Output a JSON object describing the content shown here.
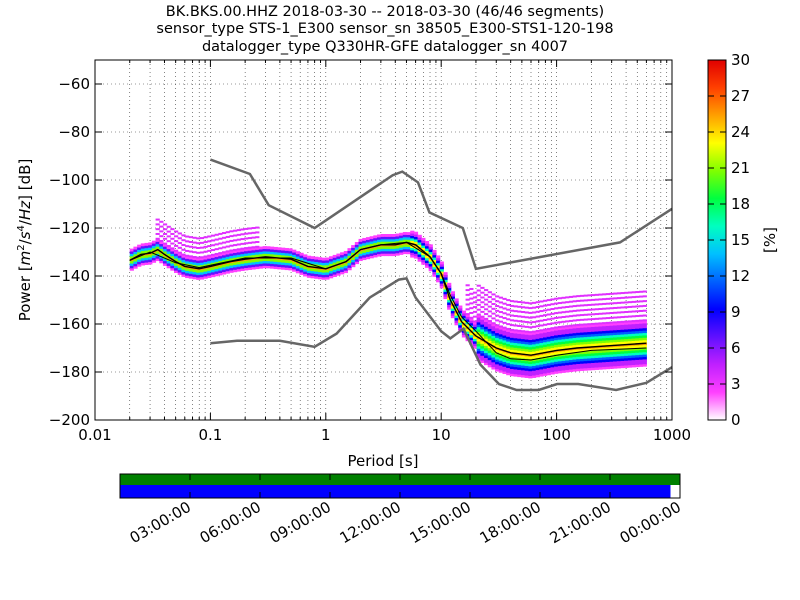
{
  "chart_data": {
    "type": "heatmap",
    "title": {
      "line1": "BK.BKS.00.HHZ   2018-03-30 -- 2018-03-30  (46/46 segments)",
      "line2": "sensor_type STS-1_E300 sensor_sn 38505_E300-STS1-120-198",
      "line3": "datalogger_type Q330HR-GFE datalogger_sn 4007"
    },
    "xlabel": "Period [s]",
    "ylabel": {
      "prefix": "Power [",
      "m": "m",
      "m_exp": "2",
      "slash1": "/",
      "s": "s",
      "s_exp": "4",
      "slash2": "/",
      "hz": "Hz",
      "suffix": "] [dB]"
    },
    "x_scale": "log",
    "xlim": [
      0.01,
      1000
    ],
    "ylim": [
      -200,
      -50
    ],
    "x_ticks": [
      {
        "value": 0.01,
        "label": "0.01"
      },
      {
        "value": 0.1,
        "label": "0.1"
      },
      {
        "value": 1,
        "label": "1"
      },
      {
        "value": 10,
        "label": "10"
      },
      {
        "value": 100,
        "label": "100"
      },
      {
        "value": 1000,
        "label": "1000"
      }
    ],
    "y_ticks": [
      {
        "value": -60,
        "label": "−60"
      },
      {
        "value": -80,
        "label": "−80"
      },
      {
        "value": -100,
        "label": "−100"
      },
      {
        "value": -120,
        "label": "−120"
      },
      {
        "value": -140,
        "label": "−140"
      },
      {
        "value": -160,
        "label": "−160"
      },
      {
        "value": -180,
        "label": "−180"
      },
      {
        "value": -200,
        "label": "−200"
      }
    ],
    "grid": "dotted",
    "colorbar": {
      "label": "[%]",
      "range": [
        0,
        30
      ],
      "ticks": [
        {
          "value": 0,
          "label": "0"
        },
        {
          "value": 3,
          "label": "3"
        },
        {
          "value": 6,
          "label": "6"
        },
        {
          "value": 9,
          "label": "9"
        },
        {
          "value": 12,
          "label": "12"
        },
        {
          "value": 15,
          "label": "15"
        },
        {
          "value": 18,
          "label": "18"
        },
        {
          "value": 21,
          "label": "21"
        },
        {
          "value": 24,
          "label": "24"
        },
        {
          "value": 27,
          "label": "27"
        },
        {
          "value": 30,
          "label": "30"
        }
      ],
      "colormap": [
        "#ffffff",
        "#ff40ff",
        "#c020ff",
        "#6010ff",
        "#0000ff",
        "#0060ff",
        "#00c0ff",
        "#00ffc0",
        "#00ff40",
        "#80ff00",
        "#ffff00",
        "#ffa000",
        "#ff4000",
        "#e00000"
      ]
    },
    "nhnm": [
      [
        0.1,
        -168
      ],
      [
        0.17,
        -167
      ],
      [
        0.4,
        -167
      ],
      [
        0.8,
        -169.5
      ],
      [
        1.24,
        -164
      ],
      [
        2.4,
        -149
      ],
      [
        4.3,
        -141.5
      ],
      [
        5.0,
        -141
      ],
      [
        6.0,
        -149
      ],
      [
        10.0,
        -163
      ],
      [
        12.0,
        -166
      ],
      [
        15.6,
        -162
      ],
      [
        21.9,
        -177
      ],
      [
        31.6,
        -185
      ],
      [
        45.0,
        -187.5
      ],
      [
        70.0,
        -187.5
      ],
      [
        101.0,
        -185
      ],
      [
        154.0,
        -185
      ],
      [
        328.0,
        -187.5
      ],
      [
        600.0,
        -184.5
      ],
      [
        1000.0,
        -178
      ]
    ],
    "nlnm": [
      [
        0.1,
        -91.5
      ],
      [
        0.22,
        -97.5
      ],
      [
        0.32,
        -110.5
      ],
      [
        0.8,
        -120
      ],
      [
        3.8,
        -98
      ],
      [
        4.6,
        -96.5
      ],
      [
        6.3,
        -101
      ],
      [
        7.9,
        -113.5
      ],
      [
        15.4,
        -120
      ],
      [
        20.0,
        -137
      ],
      [
        354.0,
        -126
      ],
      [
        1000.0,
        -112
      ]
    ],
    "mode": [
      [
        0.02,
        -133.5
      ],
      [
        0.025,
        -131
      ],
      [
        0.03,
        -130.5
      ],
      [
        0.035,
        -129
      ],
      [
        0.04,
        -131
      ],
      [
        0.05,
        -134
      ],
      [
        0.06,
        -136
      ],
      [
        0.08,
        -137
      ],
      [
        0.1,
        -136
      ],
      [
        0.15,
        -134
      ],
      [
        0.2,
        -133
      ],
      [
        0.3,
        -132
      ],
      [
        0.5,
        -133
      ],
      [
        0.7,
        -136
      ],
      [
        1.0,
        -137
      ],
      [
        1.5,
        -134
      ],
      [
        2.0,
        -129
      ],
      [
        3.0,
        -127
      ],
      [
        4.0,
        -127
      ],
      [
        5.0,
        -126
      ],
      [
        6.0,
        -127
      ],
      [
        8.0,
        -132
      ],
      [
        10.0,
        -139
      ],
      [
        12.0,
        -150
      ],
      [
        15.0,
        -159
      ],
      [
        20.0,
        -165
      ],
      [
        30.0,
        -170
      ],
      [
        40.0,
        -172
      ],
      [
        60.0,
        -173
      ],
      [
        100.0,
        -171
      ],
      [
        150.0,
        -170
      ],
      [
        300.0,
        -169
      ],
      [
        600.0,
        -168
      ]
    ],
    "mean": [
      [
        0.02,
        -133.5
      ],
      [
        0.03,
        -130
      ],
      [
        0.05,
        -134.5
      ],
      [
        0.08,
        -136.5
      ],
      [
        0.1,
        -135.5
      ],
      [
        0.2,
        -132.5
      ],
      [
        0.5,
        -132.5
      ],
      [
        1.0,
        -137
      ],
      [
        1.5,
        -134
      ],
      [
        2.0,
        -129
      ],
      [
        3.0,
        -127
      ],
      [
        5.0,
        -126
      ],
      [
        8.0,
        -132
      ],
      [
        10.0,
        -139
      ],
      [
        12.0,
        -148
      ],
      [
        15.0,
        -157
      ],
      [
        20.0,
        -163
      ],
      [
        30.0,
        -172
      ],
      [
        40.0,
        -174.5
      ],
      [
        60.0,
        -175
      ],
      [
        100.0,
        -173
      ],
      [
        200.0,
        -171
      ],
      [
        600.0,
        -170
      ]
    ],
    "timeline": {
      "ticks": [
        "03:00:00",
        "06:00:00",
        "09:00:00",
        "12:00:00",
        "15:00:00",
        "18:00:00",
        "21:00:00",
        "00:00:00"
      ],
      "span_hours": 24,
      "start_offset_hours": -3,
      "green_coverage_end_fraction": 1.0,
      "blue_coverage_end_fraction": 0.983
    }
  }
}
